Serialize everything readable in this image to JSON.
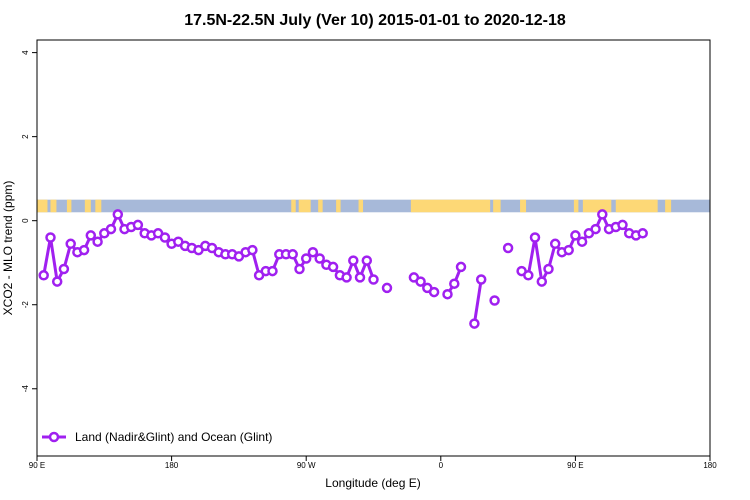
{
  "chart_data": {
    "type": "line",
    "title": "17.5N-22.5N July (Ver 10)   2015-01-01 to 2020-12-18",
    "xlabel": "Longitude (deg E)",
    "ylabel": "XCO2 - MLO trend (ppm)",
    "xlim": [
      90,
      450
    ],
    "ylim": [
      -5.6,
      4.3
    ],
    "x_ticks": [
      {
        "value": 90,
        "label": "90 E"
      },
      {
        "value": 180,
        "label": "180"
      },
      {
        "value": 270,
        "label": "90 W"
      },
      {
        "value": 360,
        "label": "0"
      },
      {
        "value": 450,
        "label": "90 E"
      },
      {
        "value": 540,
        "label": "180"
      }
    ],
    "y_ticks": [
      {
        "value": 4,
        "label": "4"
      },
      {
        "value": 2,
        "label": "2"
      },
      {
        "value": 0,
        "label": "0"
      },
      {
        "value": -2,
        "label": "-2"
      },
      {
        "value": -4,
        "label": "-4"
      }
    ],
    "x_axis_range": [
      90,
      540
    ],
    "land_ocean_strip": {
      "y_range": [
        0.2,
        0.5
      ],
      "ocean_color": "#a7b9d9",
      "land_color": "#fdd876",
      "land_segments": [
        [
          90,
          97
        ],
        [
          99,
          103
        ],
        [
          110,
          113
        ],
        [
          122,
          126
        ],
        [
          129,
          133
        ],
        [
          260,
          263
        ],
        [
          265,
          273
        ],
        [
          278,
          281
        ],
        [
          290,
          293
        ],
        [
          305,
          308
        ],
        [
          340,
          393
        ],
        [
          395,
          400
        ],
        [
          413,
          417
        ],
        [
          449,
          452
        ],
        [
          455,
          474
        ],
        [
          477,
          505
        ],
        [
          510,
          514
        ]
      ]
    },
    "series": [
      {
        "name": "Land (Nadir&Glint) and Ocean (Glint)",
        "color": "#a020f0",
        "segments": [
          [
            [
              94.5,
              -1.3
            ],
            [
              99,
              -0.4
            ],
            [
              103.5,
              -1.45
            ],
            [
              108,
              -1.15
            ],
            [
              112.5,
              -0.55
            ],
            [
              117,
              -0.75
            ],
            [
              121.5,
              -0.7
            ],
            [
              126,
              -0.35
            ],
            [
              130.5,
              -0.5
            ],
            [
              135,
              -0.3
            ],
            [
              139.5,
              -0.2
            ],
            [
              144,
              0.15
            ],
            [
              148.5,
              -0.2
            ],
            [
              153,
              -0.15
            ],
            [
              157.5,
              -0.1
            ],
            [
              162,
              -0.3
            ],
            [
              166.5,
              -0.35
            ],
            [
              171,
              -0.3
            ],
            [
              175.5,
              -0.4
            ],
            [
              180,
              -0.55
            ],
            [
              184.5,
              -0.5
            ],
            [
              189,
              -0.6
            ],
            [
              193.5,
              -0.65
            ],
            [
              198,
              -0.7
            ],
            [
              202.5,
              -0.6
            ],
            [
              207,
              -0.65
            ],
            [
              211.5,
              -0.75
            ],
            [
              216,
              -0.8
            ],
            [
              220.5,
              -0.8
            ],
            [
              225,
              -0.85
            ],
            [
              229.5,
              -0.75
            ],
            [
              234,
              -0.7
            ],
            [
              238.5,
              -1.3
            ],
            [
              243,
              -1.2
            ],
            [
              247.5,
              -1.2
            ],
            [
              252,
              -0.8
            ],
            [
              256.5,
              -0.8
            ],
            [
              261,
              -0.8
            ],
            [
              265.5,
              -1.15
            ],
            [
              270,
              -0.9
            ],
            [
              274.5,
              -0.75
            ],
            [
              279,
              -0.9
            ],
            [
              283.5,
              -1.05
            ],
            [
              288,
              -1.1
            ],
            [
              292.5,
              -1.3
            ],
            [
              297,
              -1.35
            ],
            [
              301.5,
              -0.95
            ],
            [
              306,
              -1.35
            ],
            [
              310.5,
              -0.95
            ],
            [
              315,
              -1.4
            ]
          ],
          [
            [
              324,
              -1.6
            ]
          ],
          [
            [
              342,
              -1.35
            ],
            [
              346.5,
              -1.45
            ],
            [
              351,
              -1.6
            ],
            [
              355.5,
              -1.7
            ]
          ],
          [
            [
              364.5,
              -1.75
            ],
            [
              369,
              -1.5
            ],
            [
              373.5,
              -1.1
            ]
          ],
          [
            [
              382.5,
              -2.45
            ],
            [
              387,
              -1.4
            ]
          ],
          [
            [
              396,
              -1.9
            ]
          ],
          [
            [
              405,
              -0.65
            ]
          ],
          [
            [
              414,
              -1.2
            ],
            [
              418.5,
              -1.3
            ],
            [
              423,
              -0.4
            ],
            [
              427.5,
              -1.45
            ],
            [
              432,
              -1.15
            ],
            [
              436.5,
              -0.55
            ],
            [
              441,
              -0.75
            ],
            [
              445.5,
              -0.7
            ],
            [
              450,
              -0.35
            ],
            [
              454.5,
              -0.5
            ],
            [
              459,
              -0.3
            ],
            [
              463.5,
              -0.2
            ],
            [
              468,
              0.15
            ],
            [
              472.5,
              -0.2
            ],
            [
              477,
              -0.15
            ],
            [
              481.5,
              -0.1
            ],
            [
              486,
              -0.3
            ],
            [
              490.5,
              -0.35
            ],
            [
              495,
              -0.3
            ]
          ]
        ]
      }
    ],
    "legend": {
      "position": "bottom-left",
      "entries": [
        "Land (Nadir&Glint) and Ocean (Glint)"
      ]
    },
    "grid": false
  }
}
